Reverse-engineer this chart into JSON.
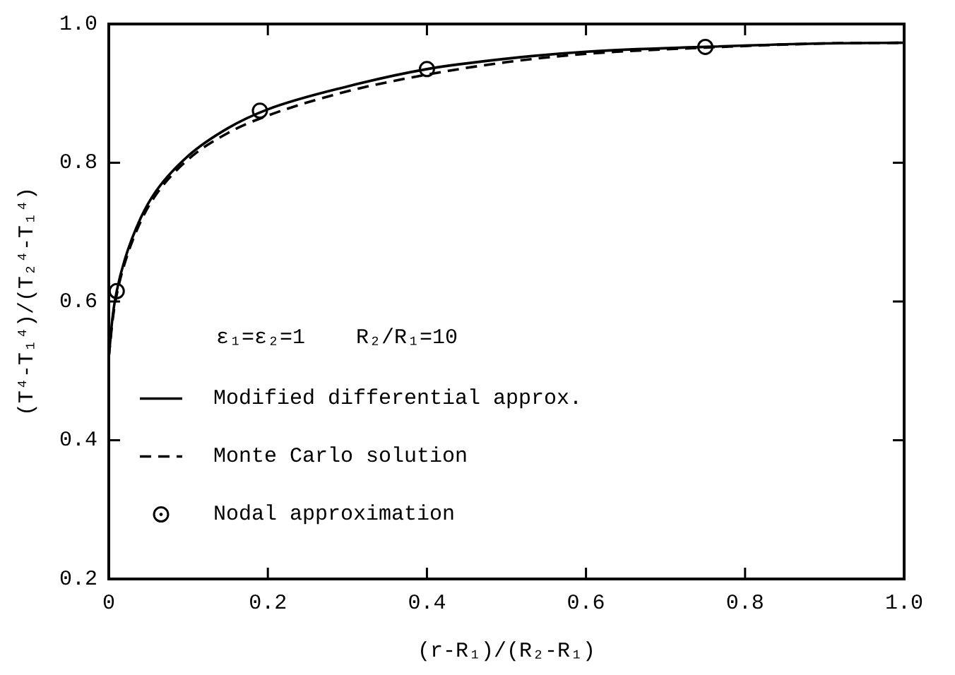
{
  "chart_data": {
    "type": "line",
    "xlabel": "(r-R₁)/(R₂-R₁)",
    "ylabel": "(T⁴-T₁⁴)/(T₂⁴-T₁⁴)",
    "xlim": [
      0,
      1.0
    ],
    "xticks": [
      0,
      0.2,
      0.4,
      0.6,
      0.8,
      {
        "value": 1.0,
        "label": "1.0"
      }
    ],
    "ylim": [
      0.2,
      1.0
    ],
    "yticks": [
      0.2,
      0.4,
      0.6,
      0.8,
      {
        "value": 1.0,
        "label": "1.0"
      }
    ],
    "grid": false,
    "legend": "bottom left",
    "annotations": [
      "ε₁=ε₂=1    R₂/R₁=10"
    ],
    "series": [
      {
        "name": "Modified differential approx.",
        "color": "#000000",
        "line_style": "solid",
        "marker": "none",
        "x": [
          0,
          0.005,
          0.01,
          0.02,
          0.04,
          0.06,
          0.1,
          0.15,
          0.2,
          0.3,
          0.4,
          0.5,
          0.6,
          0.75,
          0.9,
          1.0
        ],
        "values": [
          0.52,
          0.58,
          0.615,
          0.66,
          0.72,
          0.76,
          0.81,
          0.85,
          0.877,
          0.91,
          0.935,
          0.95,
          0.96,
          0.967,
          0.972,
          0.973
        ]
      },
      {
        "name": "Monte Carlo solution",
        "color": "#000000",
        "line_style": "dashed",
        "marker": "none",
        "x": [
          0,
          0.005,
          0.01,
          0.02,
          0.04,
          0.06,
          0.1,
          0.15,
          0.2,
          0.3,
          0.4,
          0.5,
          0.6,
          0.75,
          0.9,
          1.0
        ],
        "values": [
          0.52,
          0.575,
          0.61,
          0.655,
          0.715,
          0.755,
          0.805,
          0.843,
          0.868,
          0.903,
          0.927,
          0.945,
          0.957,
          0.966,
          0.972,
          0.973
        ]
      },
      {
        "name": "Nodal approximation",
        "type": "scatter",
        "color": "#000000",
        "marker": "circle",
        "x": [
          0.01,
          0.19,
          0.4,
          0.75
        ],
        "values": [
          0.615,
          0.875,
          0.935,
          0.967
        ]
      }
    ]
  }
}
